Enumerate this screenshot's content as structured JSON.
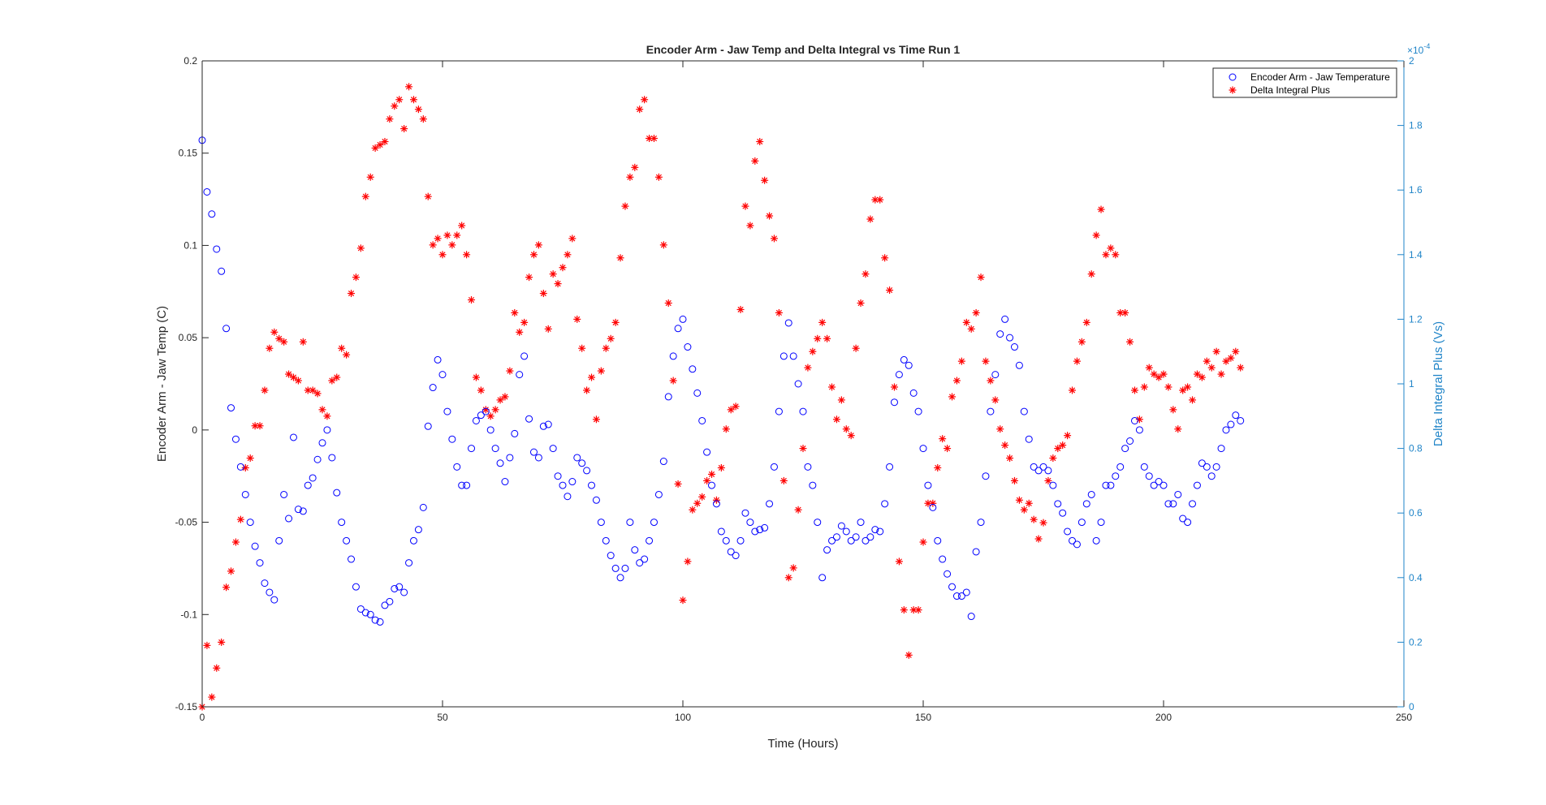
{
  "chart_data": {
    "type": "scatter",
    "title": "Encoder Arm - Jaw Temp and Delta Integral vs Time Run 1",
    "xlabel": "Time (Hours)",
    "ylabel_left": "Encoder Arm - Jaw Temp (C)",
    "ylabel_right": "Delta Integral Plus (Vs)",
    "xlim": [
      0,
      250
    ],
    "ylim_left": [
      -0.15,
      0.2
    ],
    "ylim_right": [
      0,
      2
    ],
    "right_axis_exponent_label": "×10",
    "right_axis_exponent": "-4",
    "x_ticks": [
      "0",
      "50",
      "100",
      "150",
      "200",
      "250"
    ],
    "y_ticks_left": [
      "-0.15",
      "-0.1",
      "-0.05",
      "0",
      "0.05",
      "0.1",
      "0.15",
      "0.2"
    ],
    "y_ticks_right": [
      "0",
      "0.2",
      "0.4",
      "0.6",
      "0.8",
      "1",
      "1.2",
      "1.4",
      "1.6",
      "1.8",
      "2"
    ],
    "grid": false,
    "legend_position": "top-right",
    "colors": {
      "left_series": "#0000ff",
      "right_series": "#ff0000",
      "right_axis": "#1f84c8",
      "axis": "#262626"
    },
    "series": [
      {
        "name": "Encoder Arm - Jaw Temperature",
        "axis": "left",
        "marker": "circle",
        "x_start": 0,
        "x_step": 1,
        "values": [
          0.157,
          0.129,
          0.117,
          0.098,
          0.086,
          0.055,
          0.012,
          -0.005,
          -0.02,
          -0.035,
          -0.05,
          -0.063,
          -0.072,
          -0.083,
          -0.088,
          -0.092,
          -0.06,
          -0.035,
          -0.048,
          -0.004,
          -0.043,
          -0.044,
          -0.03,
          -0.026,
          -0.016,
          -0.007,
          0.0,
          -0.015,
          -0.034,
          -0.05,
          -0.06,
          -0.07,
          -0.085,
          -0.097,
          -0.099,
          -0.1,
          -0.103,
          -0.104,
          -0.095,
          -0.093,
          -0.086,
          -0.085,
          -0.088,
          -0.072,
          -0.06,
          -0.054,
          -0.042,
          0.002,
          0.023,
          0.038,
          0.03,
          0.01,
          -0.005,
          -0.02,
          -0.03,
          -0.03,
          -0.01,
          0.005,
          0.008,
          0.01,
          0.0,
          -0.01,
          -0.018,
          -0.028,
          -0.015,
          -0.002,
          0.03,
          0.04,
          0.006,
          -0.012,
          -0.015,
          0.002,
          0.003,
          -0.01,
          -0.025,
          -0.03,
          -0.036,
          -0.028,
          -0.015,
          -0.018,
          -0.022,
          -0.03,
          -0.038,
          -0.05,
          -0.06,
          -0.068,
          -0.075,
          -0.08,
          -0.075,
          -0.05,
          -0.065,
          -0.072,
          -0.07,
          -0.06,
          -0.05,
          -0.035,
          -0.017,
          0.018,
          0.04,
          0.055,
          0.06,
          0.045,
          0.033,
          0.02,
          0.005,
          -0.012,
          -0.03,
          -0.04,
          -0.055,
          -0.06,
          -0.066,
          -0.068,
          -0.06,
          -0.045,
          -0.05,
          -0.055,
          -0.054,
          -0.053,
          -0.04,
          -0.02,
          0.01,
          0.04,
          0.058,
          0.04,
          0.025,
          0.01,
          -0.02,
          -0.03,
          -0.05,
          -0.08,
          -0.065,
          -0.06,
          -0.058,
          -0.052,
          -0.055,
          -0.06,
          -0.058,
          -0.05,
          -0.06,
          -0.058,
          -0.054,
          -0.055,
          -0.04,
          -0.02,
          0.015,
          0.03,
          0.038,
          0.035,
          0.02,
          0.01,
          -0.01,
          -0.03,
          -0.042,
          -0.06,
          -0.07,
          -0.078,
          -0.085,
          -0.09,
          -0.09,
          -0.088,
          -0.101,
          -0.066,
          -0.05,
          -0.025,
          0.01,
          0.03,
          0.052,
          0.06,
          0.05,
          0.045,
          0.035,
          0.01,
          -0.005,
          -0.02,
          -0.022,
          -0.02,
          -0.022,
          -0.03,
          -0.04,
          -0.045,
          -0.055,
          -0.06,
          -0.062,
          -0.05,
          -0.04,
          -0.035,
          -0.06,
          -0.05,
          -0.03,
          -0.03,
          -0.025,
          -0.02,
          -0.01,
          -0.006,
          0.005,
          0.0,
          -0.02,
          -0.025,
          -0.03,
          -0.028,
          -0.03,
          -0.04,
          -0.04,
          -0.035,
          -0.048,
          -0.05,
          -0.04,
          -0.03,
          -0.018,
          -0.02,
          -0.025,
          -0.02,
          -0.01,
          0.0,
          0.003,
          0.008,
          0.005
        ]
      },
      {
        "name": "Delta Integral Plus",
        "axis": "right",
        "marker": "asterisk",
        "units_scale": "1e-4",
        "x_start": 0,
        "x_step": 1,
        "values": [
          0.0,
          0.19,
          0.03,
          0.12,
          0.2,
          0.37,
          0.42,
          0.51,
          0.58,
          0.74,
          0.77,
          0.87,
          0.87,
          0.98,
          1.11,
          1.16,
          1.14,
          1.13,
          1.03,
          1.02,
          1.01,
          1.13,
          0.98,
          0.98,
          0.97,
          0.92,
          0.9,
          1.01,
          1.02,
          1.11,
          1.09,
          1.28,
          1.33,
          1.42,
          1.58,
          1.64,
          1.73,
          1.74,
          1.75,
          1.82,
          1.86,
          1.88,
          1.79,
          1.92,
          1.88,
          1.85,
          1.82,
          1.58,
          1.43,
          1.45,
          1.4,
          1.46,
          1.43,
          1.46,
          1.49,
          1.4,
          1.26,
          1.02,
          0.98,
          0.92,
          0.9,
          0.92,
          0.95,
          0.96,
          1.04,
          1.22,
          1.16,
          1.19,
          1.33,
          1.4,
          1.43,
          1.28,
          1.17,
          1.34,
          1.31,
          1.36,
          1.4,
          1.45,
          1.2,
          1.11,
          0.98,
          1.02,
          0.89,
          1.04,
          1.11,
          1.14,
          1.19,
          1.39,
          1.55,
          1.64,
          1.67,
          1.85,
          1.88,
          1.76,
          1.76,
          1.64,
          1.43,
          1.25,
          1.01,
          0.69,
          0.33,
          0.45,
          0.61,
          0.63,
          0.65,
          0.7,
          0.72,
          0.64,
          0.74,
          0.86,
          0.92,
          0.93,
          1.23,
          1.55,
          1.49,
          1.69,
          1.75,
          1.63,
          1.52,
          1.45,
          1.22,
          0.7,
          0.4,
          0.43,
          0.61,
          0.8,
          1.05,
          1.1,
          1.14,
          1.19,
          1.14,
          0.99,
          0.89,
          0.95,
          0.86,
          0.84,
          1.11,
          1.25,
          1.34,
          1.51,
          1.57,
          1.57,
          1.39,
          1.29,
          0.99,
          0.45,
          0.3,
          0.16,
          0.3,
          0.3,
          0.51,
          0.63,
          0.63,
          0.74,
          0.83,
          0.8,
          0.96,
          1.01,
          1.07,
          1.19,
          1.17,
          1.22,
          1.33,
          1.07,
          1.01,
          0.95,
          0.86,
          0.81,
          0.77,
          0.7,
          0.64,
          0.61,
          0.63,
          0.58,
          0.52,
          0.57,
          0.7,
          0.77,
          0.8,
          0.81,
          0.84,
          0.98,
          1.07,
          1.13,
          1.19,
          1.34,
          1.46,
          1.54,
          1.4,
          1.42,
          1.4,
          1.22,
          1.22,
          1.13,
          0.98,
          0.89,
          0.99,
          1.05,
          1.03,
          1.02,
          1.03,
          0.99,
          0.92,
          0.86,
          0.98,
          0.99,
          0.95,
          1.03,
          1.02,
          1.07,
          1.05,
          1.1,
          1.03,
          1.07,
          1.08,
          1.1,
          1.05
        ]
      }
    ]
  }
}
